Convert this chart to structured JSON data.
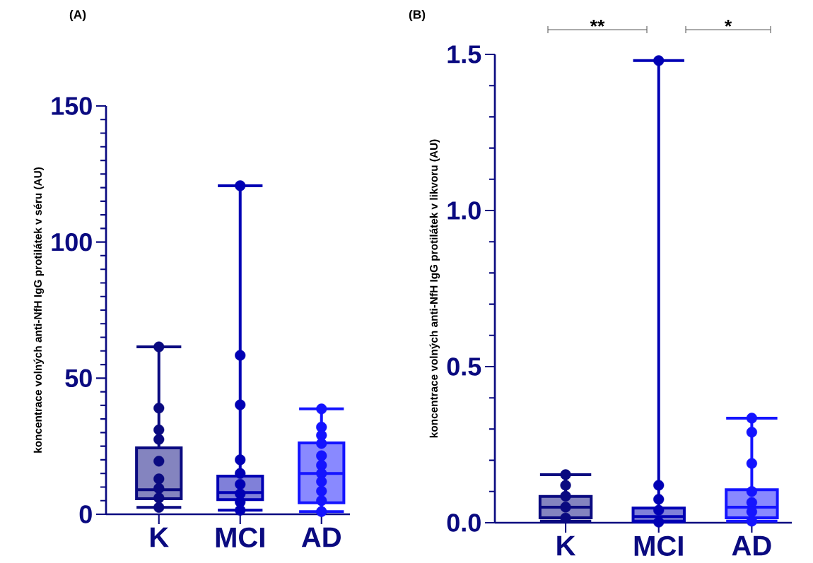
{
  "chart_data": [
    {
      "type": "box",
      "categories": [
        "K",
        "MCI",
        "AD"
      ],
      "ylabel": "koncentrace volných anti-NfH IgG protilátek v séru (AU)",
      "ylim": [
        0,
        150
      ],
      "yticks": [
        0,
        50,
        100,
        150
      ],
      "marker": "circle",
      "annotations": [
        "(A)"
      ],
      "series": [
        {
          "type": "box",
          "colors": [
            "#0a0a80",
            "#0000b4",
            "#1414ff"
          ],
          "boxes": [
            {
              "low": 2.5,
              "q1": 5.7,
              "median": 9,
              "q3": 24.4,
              "high": 61.5
            },
            {
              "low": 1.5,
              "q1": 5.4,
              "median": 8,
              "q3": 14,
              "high": 120.7
            },
            {
              "low": 1,
              "q1": 4.2,
              "median": 15,
              "q3": 26.2,
              "high": 38.7
            }
          ]
        },
        {
          "type": "scatter",
          "color": "#0a0a80",
          "x": [
            "K",
            "K",
            "K",
            "K",
            "K",
            "K",
            "K",
            "K",
            "K"
          ],
          "values": [
            61.5,
            39,
            31,
            27.5,
            19.5,
            13,
            9.5,
            6,
            2.5
          ]
        },
        {
          "type": "scatter",
          "color": "#0000b4",
          "x": [
            "MCI",
            "MCI",
            "MCI",
            "MCI",
            "MCI",
            "MCI",
            "MCI",
            "MCI",
            "MCI"
          ],
          "values": [
            120.7,
            58.4,
            40.2,
            20,
            15,
            11,
            7.5,
            4.5,
            1.5
          ]
        },
        {
          "type": "scatter",
          "color": "#1414ff",
          "x": [
            "AD",
            "AD",
            "AD",
            "AD",
            "AD",
            "AD",
            "AD",
            "AD",
            "AD",
            "AD",
            "AD"
          ],
          "values": [
            38.7,
            32,
            29,
            26,
            21.5,
            18,
            15,
            12,
            8.5,
            5,
            1
          ]
        }
      ]
    },
    {
      "type": "box",
      "categories": [
        "K",
        "MCI",
        "AD"
      ],
      "ylabel": "koncentrace volných anti-NfH IgG protilátek v likvoru (AU)",
      "ylim": [
        0,
        1.5
      ],
      "yticks": [
        {
          "value": 0,
          "label": "0.0"
        },
        {
          "value": 0.5,
          "label": "0.5"
        },
        {
          "value": 1.0,
          "label": "1.0"
        },
        {
          "value": 1.5,
          "label": "1.5"
        }
      ],
      "marker": "circle",
      "annotations": [
        "(B)",
        "**",
        "*"
      ],
      "series": [
        {
          "type": "box",
          "colors": [
            "#0a0a80",
            "#0000b4",
            "#1414ff"
          ],
          "boxes": [
            {
              "low": 0.005,
              "q1": 0.016,
              "median": 0.05,
              "q3": 0.084,
              "high": 0.154
            },
            {
              "low": 0.002,
              "q1": 0.005,
              "median": 0.02,
              "q3": 0.047,
              "high": 1.48
            },
            {
              "low": 0.005,
              "q1": 0.016,
              "median": 0.05,
              "q3": 0.106,
              "high": 0.335
            }
          ]
        },
        {
          "type": "scatter",
          "color": "#0a0a80",
          "x": [
            "K",
            "K",
            "K",
            "K",
            "K"
          ],
          "values": [
            0.154,
            0.12,
            0.085,
            0.05,
            0.015
          ]
        },
        {
          "type": "scatter",
          "color": "#0000b4",
          "x": [
            "MCI",
            "MCI",
            "MCI",
            "MCI",
            "MCI"
          ],
          "values": [
            1.48,
            0.12,
            0.075,
            0.04,
            0.002
          ]
        },
        {
          "type": "scatter",
          "color": "#1414ff",
          "x": [
            "AD",
            "AD",
            "AD",
            "AD",
            "AD",
            "AD",
            "AD"
          ],
          "values": [
            0.335,
            0.29,
            0.19,
            0.1,
            0.065,
            0.035,
            0.005
          ]
        }
      ]
    }
  ]
}
